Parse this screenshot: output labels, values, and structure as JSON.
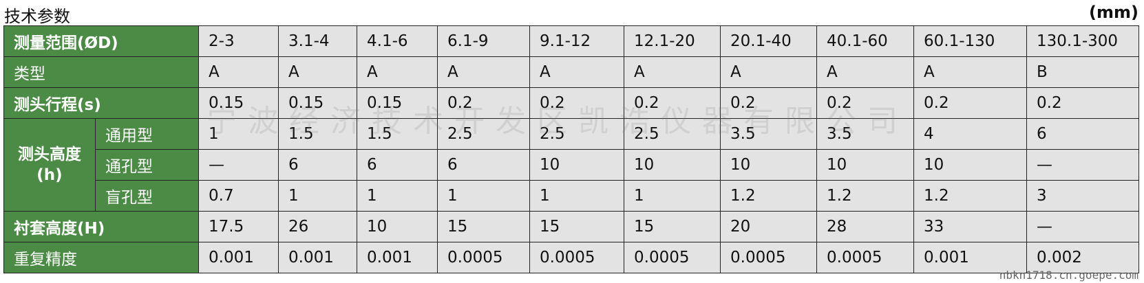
{
  "header": {
    "title": "技术参数",
    "unit": "(mm)"
  },
  "table": {
    "rows": [
      {
        "label": "测量范围(ØD)",
        "values": [
          "2-3",
          "3.1-4",
          "4.1-6",
          "6.1-9",
          "9.1-12",
          "12.1-20",
          "20.1-40",
          "40.1-60",
          "60.1-130",
          "130.1-300"
        ]
      },
      {
        "label": "类型",
        "values": [
          "A",
          "A",
          "A",
          "A",
          "A",
          "A",
          "A",
          "A",
          "A",
          "B"
        ]
      },
      {
        "label": "测头行程(s)",
        "values": [
          "0.15",
          "0.15",
          "0.15",
          "0.2",
          "0.2",
          "0.2",
          "0.2",
          "0.2",
          "0.2",
          "0.2"
        ]
      }
    ],
    "group": {
      "label": "测头高度",
      "sublabel": "(h)",
      "rows": [
        {
          "label": "通用型",
          "values": [
            "1",
            "1.5",
            "1.5",
            "2.5",
            "2.5",
            "2.5",
            "3.5",
            "3.5",
            "4",
            "6"
          ]
        },
        {
          "label": "通孔型",
          "values": [
            "—",
            "6",
            "6",
            "6",
            "10",
            "10",
            "10",
            "10",
            "10",
            "—"
          ]
        },
        {
          "label": "盲孔型",
          "values": [
            "0.7",
            "1",
            "1",
            "1",
            "1",
            "1",
            "1.2",
            "1.2",
            "1.2",
            "3"
          ]
        }
      ]
    },
    "rows_after": [
      {
        "label": "衬套高度(H)",
        "values": [
          "17.5",
          "26",
          "10",
          "15",
          "15",
          "15",
          "20",
          "28",
          "33",
          "—"
        ]
      },
      {
        "label": "重复精度",
        "values": [
          "0.001",
          "0.001",
          "0.001",
          "0.0005",
          "0.0005",
          "0.0005",
          "0.0005",
          "0.0005",
          "0.001",
          "0.002"
        ]
      }
    ]
  },
  "watermark": {
    "company": "宁波经济技术开发区凯浩仪器有限公司",
    "site": "nbkn1718.cn.goepe.com"
  }
}
